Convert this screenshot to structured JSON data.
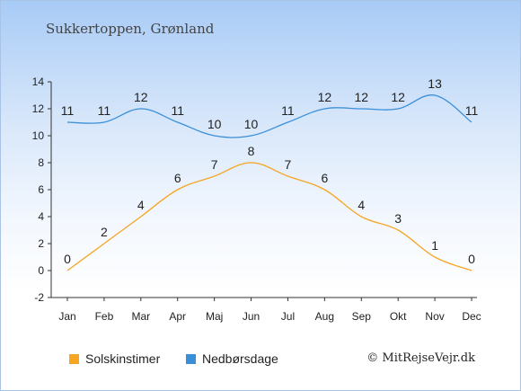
{
  "header": {
    "title": "Sukkertoppen, Grønland"
  },
  "credit": "© MitRejseVejr.dk",
  "legend": [
    {
      "label": "Solskinstimer",
      "color": "#f5a623"
    },
    {
      "label": "Nedbørsdage",
      "color": "#3a8fd9"
    }
  ],
  "chart_data": {
    "type": "line",
    "title": "",
    "xlabel": "",
    "ylabel": "",
    "categories": [
      "Jan",
      "Feb",
      "Mar",
      "Apr",
      "Maj",
      "Jun",
      "Jul",
      "Aug",
      "Sep",
      "Okt",
      "Nov",
      "Dec"
    ],
    "ylim": [
      -2,
      14
    ],
    "yticks": [
      "-2",
      "0",
      "2",
      "4",
      "6",
      "8",
      "10",
      "12",
      "14"
    ],
    "grid": false,
    "legend_position": "bottom-left",
    "series": [
      {
        "name": "Solskinstimer",
        "color": "#f5a623",
        "values": [
          0,
          2,
          4,
          6,
          7,
          8,
          7,
          6,
          4,
          3,
          1,
          0
        ]
      },
      {
        "name": "Nedbørsdage",
        "color": "#3a8fd9",
        "values": [
          11,
          11,
          12,
          11,
          10,
          10,
          11,
          12,
          12,
          12,
          13,
          11
        ]
      }
    ]
  }
}
